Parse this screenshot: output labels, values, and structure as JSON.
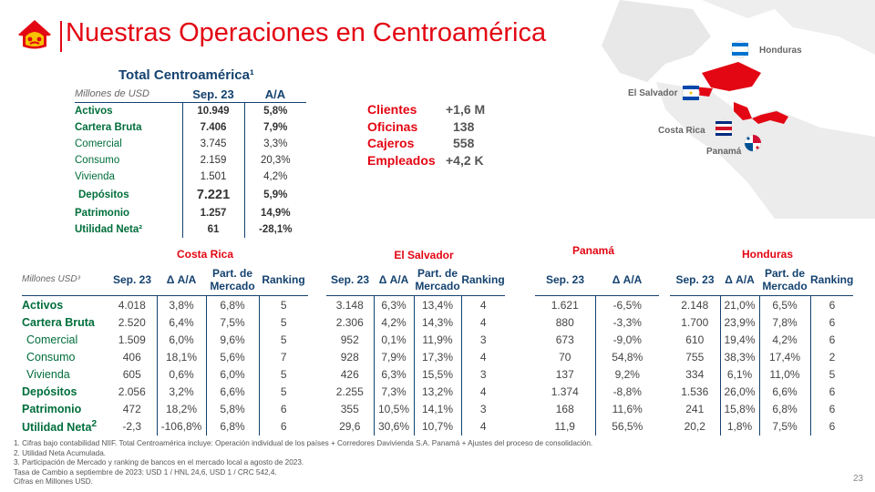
{
  "header": {
    "title": "Nuestras Operaciones en Centroamérica"
  },
  "map": {
    "labels": {
      "honduras": "Honduras",
      "el_salvador": "El Salvador",
      "costa_rica": "Costa Rica",
      "panama": "Panamá"
    }
  },
  "total": {
    "title": "Total Centroamérica¹",
    "unit": "Millones de USD",
    "col1": "Sep. 23",
    "col2": "A/A",
    "rows": [
      {
        "label": "Activos",
        "v": "10.949",
        "aa": "5,8%"
      },
      {
        "label": "Cartera Bruta",
        "v": "7.406",
        "aa": "7,9%"
      },
      {
        "label": "Comercial",
        "v": "3.745",
        "aa": "3,3%"
      },
      {
        "label": "Consumo",
        "v": "2.159",
        "aa": "20,3%"
      },
      {
        "label": "Vivienda",
        "v": "1.501",
        "aa": "4,2%"
      },
      {
        "label": "Depósitos",
        "v": "7.221",
        "aa": "5,9%"
      },
      {
        "label": "Patrimonio",
        "v": "1.257",
        "aa": "14,9%"
      },
      {
        "label": "Utilidad Neta²",
        "v": "61",
        "aa": "-28,1%"
      }
    ]
  },
  "metrics": [
    {
      "label": "Clientes",
      "value": "+1,6 M"
    },
    {
      "label": "Oficinas",
      "value": "138"
    },
    {
      "label": "Cajeros",
      "value": "558"
    },
    {
      "label": "Empleados",
      "value": "+4,2 K"
    }
  ],
  "countries": {
    "unit": "Millones USD³",
    "row_labels": [
      "Activos",
      "Cartera Bruta",
      "Comercial",
      "Consumo",
      "Vivienda",
      "Depósitos",
      "Patrimonio",
      "Utilidad Neta"
    ],
    "util_sup": "2",
    "headers": {
      "sep": "Sep. 23",
      "aa": "Δ A/A",
      "part": "Part. de Mercado",
      "rank": "Ranking"
    },
    "costa_rica": {
      "name": "Costa Rica",
      "rows": [
        [
          "4.018",
          "3,8%",
          "6,8%",
          "5"
        ],
        [
          "2.520",
          "6,4%",
          "7,5%",
          "5"
        ],
        [
          "1.509",
          "6,0%",
          "9,6%",
          "5"
        ],
        [
          "406",
          "18,1%",
          "5,6%",
          "7"
        ],
        [
          "605",
          "0,6%",
          "6,0%",
          "5"
        ],
        [
          "2.056",
          "3,2%",
          "6,6%",
          "5"
        ],
        [
          "472",
          "18,2%",
          "5,8%",
          "6"
        ],
        [
          "-2,3",
          "-106,8%",
          "6,8%",
          "6"
        ]
      ]
    },
    "el_salvador": {
      "name": "El Salvador",
      "rows": [
        [
          "3.148",
          "6,3%",
          "13,4%",
          "4"
        ],
        [
          "2.306",
          "4,2%",
          "14,3%",
          "4"
        ],
        [
          "952",
          "0,1%",
          "11,9%",
          "3"
        ],
        [
          "928",
          "7,9%",
          "17,3%",
          "4"
        ],
        [
          "426",
          "6,3%",
          "15,5%",
          "3"
        ],
        [
          "2.255",
          "7,3%",
          "13,2%",
          "4"
        ],
        [
          "355",
          "10,5%",
          "14,1%",
          "3"
        ],
        [
          "29,6",
          "30,6%",
          "10,7%",
          "4"
        ]
      ]
    },
    "panama": {
      "name": "Panamá",
      "rows": [
        [
          "1.621",
          "-6,5%"
        ],
        [
          "880",
          "-3,3%"
        ],
        [
          "673",
          "-9,0%"
        ],
        [
          "70",
          "54,8%"
        ],
        [
          "137",
          "9,2%"
        ],
        [
          "1.374",
          "-8,8%"
        ],
        [
          "168",
          "11,6%"
        ],
        [
          "11,9",
          "56,5%"
        ]
      ]
    },
    "honduras": {
      "name": "Honduras",
      "rows": [
        [
          "2.148",
          "21,0%",
          "6,5%",
          "6"
        ],
        [
          "1.700",
          "23,9%",
          "7,8%",
          "6"
        ],
        [
          "610",
          "19,4%",
          "4,2%",
          "6"
        ],
        [
          "755",
          "38,3%",
          "17,4%",
          "2"
        ],
        [
          "334",
          "6,1%",
          "11,0%",
          "5"
        ],
        [
          "1.536",
          "26,0%",
          "6,6%",
          "6"
        ],
        [
          "241",
          "15,8%",
          "6,8%",
          "6"
        ],
        [
          "20,2",
          "1,8%",
          "7,5%",
          "6"
        ]
      ]
    }
  },
  "footnotes": [
    "1. Cifras bajo contabilidad NIIF.  Total Centroamérica  incluye: Operación individual  de los países + Corredores  Davivienda  S.A.  Panamá + Ajustes del proceso de consolidación.",
    "2. Utilidad Neta Acumulada.",
    "3. Participación  de Mercado y ranking de bancos en el mercado local a agosto de 2023.",
    "Tasa de Cambio a septiembre de 2023: USD 1 / HNL 24,6,  USD 1 / CRC 542,4.",
    "Cifras en Millones  USD."
  ],
  "page_number": "23",
  "colors": {
    "brand_red": "#e30613",
    "navy": "#14426f",
    "green": "#006e3b"
  }
}
